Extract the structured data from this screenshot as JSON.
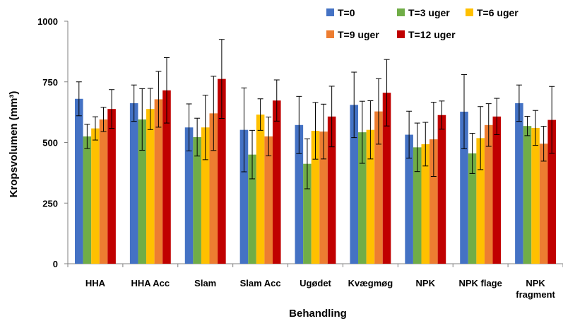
{
  "chart_data": {
    "type": "bar",
    "title": "",
    "xlabel": "Behandling",
    "ylabel": "Kropsvolumen (mm³)",
    "ylim": [
      0,
      1000
    ],
    "yticks": [
      "0",
      "250",
      "500",
      "750",
      "1000"
    ],
    "ytick_values": [
      0,
      250,
      500,
      750,
      1000
    ],
    "grid": false,
    "legend_position": "top-right",
    "categories": [
      "HHA",
      "HHA Acc",
      "Slam",
      "Slam Acc",
      "Ugødet",
      "Kvægmøg",
      "NPK",
      "NPK flage",
      "NPK fragment"
    ],
    "series": [
      {
        "name": "T=0",
        "color": "#4472C4",
        "values": [
          680,
          662,
          562,
          552,
          572,
          655,
          532,
          627,
          662
        ],
        "error": [
          70,
          75,
          97,
          173,
          118,
          135,
          97,
          153,
          75
        ]
      },
      {
        "name": "T=3 uger",
        "color": "#70AD47",
        "values": [
          525,
          595,
          522,
          450,
          412,
          542,
          480,
          455,
          568
        ],
        "error": [
          50,
          127,
          78,
          100,
          103,
          128,
          100,
          83,
          40
        ]
      },
      {
        "name": "T=6 uger",
        "color": "#FFC000",
        "values": [
          558,
          638,
          562,
          615,
          548,
          552,
          493,
          518,
          560
        ],
        "error": [
          48,
          85,
          133,
          65,
          117,
          120,
          90,
          130,
          72
        ]
      },
      {
        "name": "T=9 uger",
        "color": "#ED7D31",
        "values": [
          595,
          678,
          620,
          525,
          545,
          628,
          513,
          572,
          495
        ],
        "error": [
          50,
          115,
          153,
          80,
          113,
          135,
          153,
          88,
          72
        ]
      },
      {
        "name": "T=12 uger",
        "color": "#C00000",
        "values": [
          638,
          715,
          762,
          673,
          607,
          705,
          613,
          607,
          593
        ],
        "error": [
          80,
          135,
          163,
          85,
          125,
          137,
          58,
          75,
          138
        ]
      }
    ]
  }
}
